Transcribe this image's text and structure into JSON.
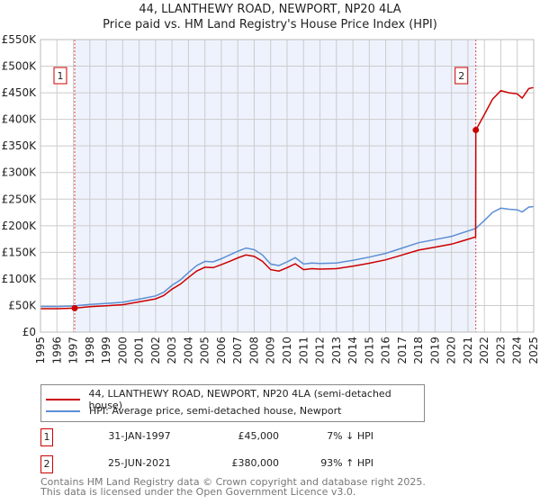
{
  "chart_data": {
    "type": "line",
    "title": "44, LLANTHEWY ROAD, NEWPORT, NP20 4LA",
    "subtitle": "Price paid vs. HM Land Registry's House Price Index (HPI)",
    "xlim": [
      1995,
      2025
    ],
    "ylim": [
      0,
      550000
    ],
    "x_ticks": [
      "1995",
      "1996",
      "1997",
      "1998",
      "1999",
      "2000",
      "2001",
      "2002",
      "2003",
      "2004",
      "2005",
      "2006",
      "2007",
      "2008",
      "2009",
      "2010",
      "2011",
      "2012",
      "2013",
      "2014",
      "2015",
      "2016",
      "2017",
      "2018",
      "2019",
      "2020",
      "2021",
      "2022",
      "2023",
      "2024",
      "2025"
    ],
    "y_ticks": [
      {
        "v": 0,
        "label": "£0"
      },
      {
        "v": 50000,
        "label": "£50K"
      },
      {
        "v": 100000,
        "label": "£100K"
      },
      {
        "v": 150000,
        "label": "£150K"
      },
      {
        "v": 200000,
        "label": "£200K"
      },
      {
        "v": 250000,
        "label": "£250K"
      },
      {
        "v": 300000,
        "label": "£300K"
      },
      {
        "v": 350000,
        "label": "£350K"
      },
      {
        "v": 400000,
        "label": "£400K"
      },
      {
        "v": 450000,
        "label": "£450K"
      },
      {
        "v": 500000,
        "label": "£500K"
      },
      {
        "v": 550000,
        "label": "£550K"
      }
    ],
    "grid": true,
    "series": [
      {
        "name": "44, LLANTHEWY ROAD, NEWPORT, NP20 4LA (semi-detached house)",
        "color": "#cc0000",
        "x": [
          1995,
          1996,
          1997.08,
          1998,
          1999,
          2000,
          2001,
          2002,
          2002.5,
          2003,
          2003.5,
          2004,
          2004.5,
          2005,
          2005.5,
          2006,
          2006.5,
          2007,
          2007.5,
          2008,
          2008.5,
          2009,
          2009.5,
          2010,
          2010.5,
          2011,
          2011.5,
          2012,
          2013,
          2014,
          2015,
          2016,
          2017,
          2018,
          2019,
          2020,
          2021,
          2021.47,
          2021.48,
          2022,
          2022.5,
          2023,
          2023.5,
          2024,
          2024.3,
          2024.7,
          2025
        ],
        "y": [
          44000,
          44000,
          45000,
          47700,
          49600,
          51400,
          56900,
          62400,
          68900,
          80800,
          90000,
          102800,
          114800,
          122100,
          121200,
          126700,
          133100,
          139600,
          145000,
          142300,
          133100,
          117500,
          114800,
          121200,
          128500,
          117500,
          119300,
          118400,
          119300,
          124000,
          129400,
          135900,
          145000,
          154200,
          159700,
          165300,
          174400,
          179000,
          380000,
          409000,
          438000,
          454000,
          450000,
          448000,
          440000,
          458000,
          460000
        ]
      },
      {
        "name": "HPI: Average price, semi-detached house, Newport",
        "color": "#5b8fd4",
        "x": [
          1995,
          1996,
          1997,
          1998,
          1999,
          2000,
          2001,
          2002,
          2002.5,
          2003,
          2003.5,
          2004,
          2004.5,
          2005,
          2005.5,
          2006,
          2006.5,
          2007,
          2007.5,
          2008,
          2008.5,
          2009,
          2009.5,
          2010,
          2010.5,
          2011,
          2011.5,
          2012,
          2013,
          2014,
          2015,
          2016,
          2017,
          2018,
          2019,
          2020,
          2021,
          2021.48,
          2022,
          2022.5,
          2023,
          2023.5,
          2024,
          2024.3,
          2024.7,
          2025
        ],
        "y": [
          48000,
          48000,
          49000,
          52000,
          54000,
          56000,
          62000,
          68000,
          75000,
          88000,
          98000,
          112000,
          125000,
          133000,
          132000,
          138000,
          145000,
          152000,
          158000,
          155000,
          145000,
          128000,
          125000,
          132000,
          140000,
          128000,
          130000,
          129000,
          130000,
          135000,
          141000,
          148000,
          158000,
          168000,
          174000,
          180000,
          190000,
          195000,
          210000,
          225000,
          233000,
          231000,
          230000,
          226000,
          235000,
          236000
        ]
      }
    ],
    "sales": [
      {
        "id": "1",
        "x": 1997.08,
        "y": 45000,
        "date": "31-JAN-1997",
        "price": "£45,000",
        "hpi": "7% ↓ HPI"
      },
      {
        "id": "2",
        "x": 2021.48,
        "y": 380000,
        "date": "25-JUN-2021",
        "price": "£380,000",
        "hpi": "93% ↑ HPI"
      }
    ],
    "legend_placement": "below"
  },
  "footer": {
    "line1": "Contains HM Land Registry data © Crown copyright and database right 2025.",
    "line2": "This data is licensed under the Open Government Licence v3.0."
  }
}
